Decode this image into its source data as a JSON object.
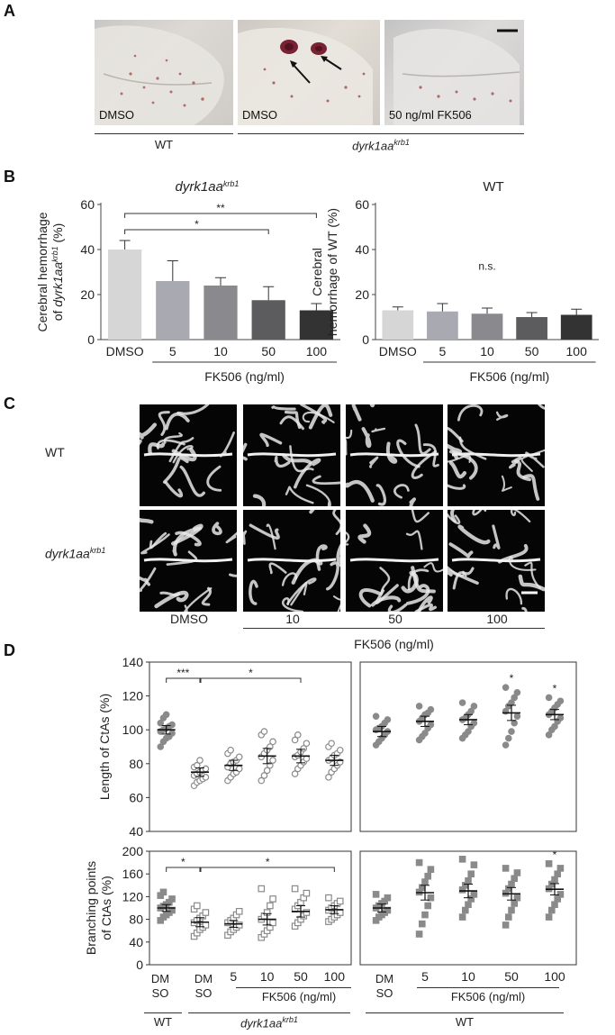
{
  "panels": {
    "a": "A",
    "b": "B",
    "c": "C",
    "d": "D"
  },
  "panel_a": {
    "photos": [
      {
        "label": "DMSO"
      },
      {
        "label": "DMSO"
      },
      {
        "label": "50 ng/ml FK506"
      }
    ],
    "groups": [
      "WT",
      "dyrk1aa",
      "krb1"
    ]
  },
  "panel_c": {
    "rows": [
      "WT",
      "dyrk1aa",
      "krb1"
    ],
    "cols": [
      "DMSO",
      "10",
      "50",
      "100"
    ],
    "treatment": "FK506 (ng/ml)"
  },
  "panel_d_bottom": {
    "tick_pairs": [
      [
        "DM",
        "SO"
      ],
      [
        "DM",
        "SO"
      ],
      [
        "DM",
        "SO"
      ]
    ],
    "wt": "WT",
    "mut": "dyrk1aa",
    "mut_sup": "krb1",
    "fk_label": "FK506 (ng/ml)"
  },
  "chart_data": [
    {
      "type": "bar",
      "title": "dyrk1aa krb1",
      "ylabel": "Cerebral hemorrhage of dyrk1aa krb1 (%)",
      "xlabel": "FK506 (ng/ml)",
      "categories": [
        "DMSO",
        "5",
        "10",
        "50",
        "100"
      ],
      "values": [
        40,
        26,
        24,
        17.5,
        13
      ],
      "errors": [
        4,
        9,
        3.5,
        6,
        3
      ],
      "colors": [
        "#d6d6d6",
        "#a9a9b2",
        "#8a8a8e",
        "#5c5c5e",
        "#333333"
      ],
      "ylim": [
        0,
        60
      ],
      "yticks": [
        0,
        20,
        40,
        60
      ],
      "significance": [
        {
          "from": "DMSO",
          "to": "50",
          "label": "*"
        },
        {
          "from": "DMSO",
          "to": "100",
          "label": "**"
        }
      ]
    },
    {
      "type": "bar",
      "title": "WT",
      "ylabel": "Cerebral hemorrhage of WT (%)",
      "xlabel": "FK506 (ng/ml)",
      "categories": [
        "DMSO",
        "5",
        "10",
        "50",
        "100"
      ],
      "values": [
        13,
        12.5,
        11.5,
        10,
        11
      ],
      "errors": [
        1.5,
        3.5,
        2.5,
        2,
        2.5
      ],
      "colors": [
        "#d6d6d6",
        "#a9a9b2",
        "#8a8a8e",
        "#5c5c5e",
        "#333333"
      ],
      "ylim": [
        0,
        60
      ],
      "yticks": [
        0,
        20,
        40,
        60
      ],
      "annotation": "n.s."
    },
    {
      "type": "scatter",
      "ylabel": "Length of CtAs (%)",
      "ylim": [
        40,
        140
      ],
      "yticks": [
        40,
        60,
        80,
        100,
        120,
        140
      ],
      "left": {
        "categories": [
          "WT DMSO",
          "dyrk1aa krb1 DMSO",
          "5",
          "10",
          "50",
          "100"
        ],
        "means": [
          100,
          75,
          79,
          84.5,
          84.5,
          82
        ],
        "sem": [
          2.5,
          2.5,
          3,
          4.5,
          4,
          3
        ],
        "points": [
          [
            90,
            93,
            95,
            96,
            98,
            99,
            100,
            101,
            102,
            103,
            104,
            107,
            109
          ],
          [
            67,
            69,
            70,
            71,
            72,
            73,
            74,
            75,
            76,
            77,
            78,
            79,
            82
          ],
          [
            70,
            72,
            74,
            75,
            77,
            78,
            80,
            81,
            82,
            84,
            86,
            88
          ],
          [
            70,
            73,
            76,
            79,
            82,
            84,
            86,
            88,
            90,
            93,
            97,
            99
          ],
          [
            74,
            77,
            79,
            81,
            83,
            84,
            85,
            87,
            89,
            92,
            94,
            97
          ],
          [
            72,
            75,
            77,
            79,
            81,
            82,
            83,
            85,
            86,
            88,
            90,
            92
          ]
        ],
        "filled": [
          true,
          false,
          false,
          false,
          false,
          false
        ],
        "significance": [
          {
            "from": "WT DMSO",
            "to": "dyrk1aa krb1 DMSO",
            "label": "***"
          },
          {
            "from": "dyrk1aa krb1 DMSO",
            "to": "50",
            "label": "*"
          }
        ]
      },
      "right": {
        "categories": [
          "DMSO",
          "5",
          "10",
          "50",
          "100"
        ],
        "means": [
          99,
          105,
          106,
          110,
          109
        ],
        "sem": [
          3,
          3,
          3,
          4.5,
          3
        ],
        "points": [
          [
            91,
            93,
            95,
            97,
            99,
            100,
            101,
            102,
            104,
            106,
            108
          ],
          [
            94,
            96,
            98,
            101,
            103,
            105,
            107,
            109,
            110,
            112,
            114
          ],
          [
            95,
            97,
            99,
            102,
            104,
            106,
            107,
            109,
            111,
            114,
            116
          ],
          [
            91,
            95,
            99,
            104,
            108,
            111,
            114,
            116,
            119,
            122,
            125
          ],
          [
            97,
            100,
            102,
            105,
            107,
            109,
            111,
            113,
            115,
            117,
            119
          ]
        ],
        "filled": [
          true,
          true,
          true,
          true,
          true
        ],
        "markers": [
          "",
          "",
          "",
          "*",
          "*"
        ]
      }
    },
    {
      "type": "scatter",
      "ylabel": "Branching points of CtAs (%)",
      "ylim": [
        0,
        200
      ],
      "yticks": [
        0,
        40,
        80,
        120,
        160,
        200
      ],
      "left": {
        "categories": [
          "WT DMSO",
          "dyrk1aa krb1 DMSO",
          "5",
          "10",
          "50",
          "100"
        ],
        "means": [
          100,
          75,
          72,
          80,
          94,
          97
        ],
        "sem": [
          6,
          8,
          6,
          10,
          10,
          7
        ],
        "points": [
          [
            78,
            84,
            88,
            92,
            96,
            100,
            103,
            106,
            110,
            116,
            122,
            128
          ],
          [
            50,
            56,
            62,
            66,
            70,
            74,
            78,
            82,
            86,
            92,
            98,
            104
          ],
          [
            52,
            58,
            62,
            66,
            70,
            74,
            78,
            82,
            88,
            94
          ],
          [
            48,
            54,
            60,
            66,
            74,
            80,
            86,
            92,
            104,
            116,
            134
          ],
          [
            68,
            74,
            80,
            86,
            92,
            98,
            104,
            110,
            118,
            126,
            134
          ],
          [
            76,
            80,
            84,
            88,
            92,
            96,
            100,
            104,
            108,
            112,
            118
          ]
        ],
        "filled": [
          true,
          false,
          false,
          false,
          false,
          false
        ],
        "significance": [
          {
            "from": "WT DMSO",
            "to": "dyrk1aa krb1 DMSO",
            "label": "*"
          },
          {
            "from": "dyrk1aa krb1 DMSO",
            "to": "100",
            "label": "*"
          }
        ]
      },
      "right": {
        "categories": [
          "DMSO",
          "5",
          "10",
          "50",
          "100"
        ],
        "means": [
          100,
          127,
          130,
          125,
          133
        ],
        "sem": [
          7,
          13,
          12,
          11,
          10
        ],
        "points": [
          [
            78,
            84,
            88,
            92,
            96,
            100,
            104,
            108,
            112,
            118,
            124
          ],
          [
            54,
            72,
            88,
            104,
            118,
            128,
            136,
            146,
            156,
            168,
            180
          ],
          [
            84,
            96,
            106,
            116,
            124,
            132,
            140,
            148,
            160,
            176,
            186
          ],
          [
            70,
            84,
            96,
            108,
            118,
            126,
            134,
            142,
            152,
            162,
            170
          ],
          [
            84,
            96,
            106,
            116,
            124,
            134,
            142,
            150,
            160,
            170,
            178
          ]
        ],
        "filled": [
          true,
          true,
          true,
          true,
          true
        ],
        "markers": [
          "",
          "",
          "",
          "",
          "*"
        ]
      }
    }
  ]
}
